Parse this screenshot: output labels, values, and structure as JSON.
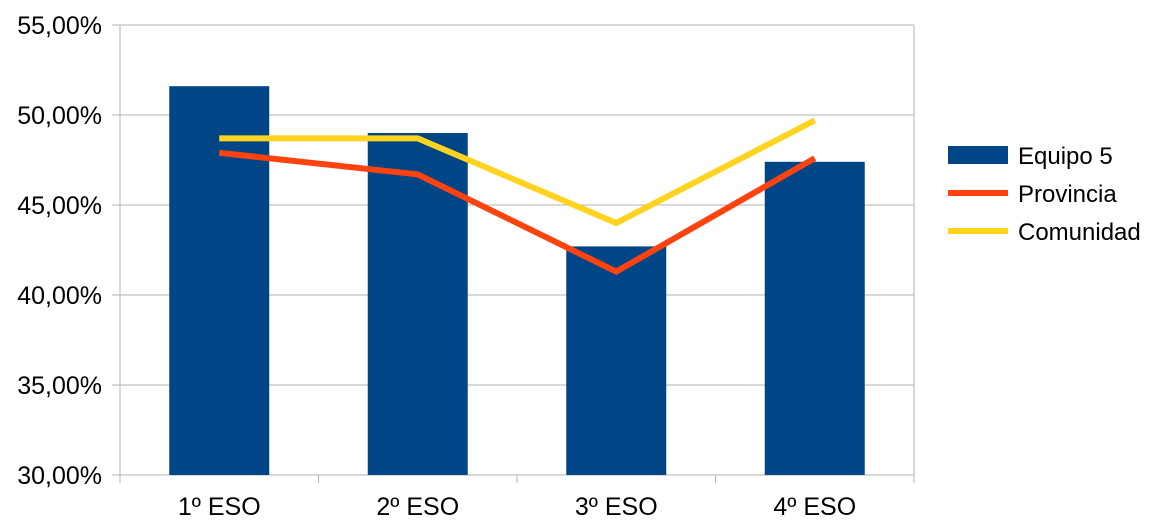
{
  "chart_data": {
    "type": "bar",
    "categories": [
      "1º ESO",
      "2º ESO",
      "3º ESO",
      "4º ESO"
    ],
    "ylim": [
      0.3,
      0.55
    ],
    "y_ticks": [
      {
        "value": 0.3,
        "label": "30,00%"
      },
      {
        "value": 0.35,
        "label": "35,00%"
      },
      {
        "value": 0.4,
        "label": "40,00%"
      },
      {
        "value": 0.45,
        "label": "45,00%"
      },
      {
        "value": 0.5,
        "label": "50,00%"
      },
      {
        "value": 0.55,
        "label": "55,00%"
      }
    ],
    "grid": true,
    "legend_position": "right",
    "series": [
      {
        "name": "Equipo 5",
        "type": "bar",
        "color": "#004586",
        "values": [
          0.516,
          0.49,
          0.427,
          0.474
        ]
      },
      {
        "name": "Provincia",
        "type": "line",
        "color": "#ff420e",
        "values": [
          0.479,
          0.467,
          0.413,
          0.476
        ]
      },
      {
        "name": "Comunidad",
        "type": "line",
        "color": "#ffd320",
        "values": [
          0.487,
          0.487,
          0.44,
          0.497
        ]
      }
    ]
  }
}
